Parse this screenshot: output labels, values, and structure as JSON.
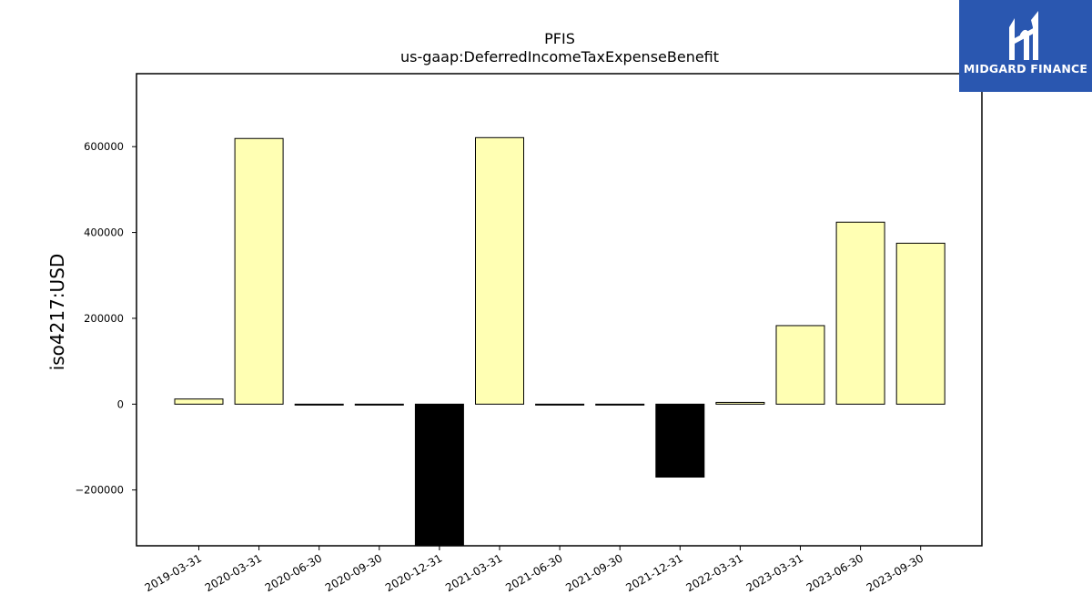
{
  "brand": {
    "name": "MIDGARD FINANCE",
    "color": "#2a57b0"
  },
  "chart_data": {
    "type": "bar",
    "title": "PFIS",
    "subtitle": "us-gaap:DeferredIncomeTaxExpenseBenefit",
    "xlabel": "",
    "ylabel": "iso4217:USD",
    "categories": [
      "2019-03-31",
      "2020-03-31",
      "2020-06-30",
      "2020-09-30",
      "2020-12-31",
      "2021-03-31",
      "2021-06-30",
      "2021-09-30",
      "2021-12-31",
      "2022-03-31",
      "2023-03-31",
      "2023-06-30",
      "2023-09-30"
    ],
    "values": [
      12000,
      619000,
      0,
      0,
      -350000,
      621000,
      0,
      0,
      -170000,
      4000,
      183000,
      424000,
      375000
    ],
    "ylim": [
      -330000,
      770000
    ],
    "yticks": [
      -200000,
      0,
      200000,
      400000,
      600000
    ],
    "ytick_labels": [
      "−200000",
      "0",
      "200000",
      "400000",
      "600000"
    ],
    "grid": false,
    "colors": {
      "positive": "#ffffb3",
      "negative": "#000000",
      "edge": "#000000"
    }
  }
}
